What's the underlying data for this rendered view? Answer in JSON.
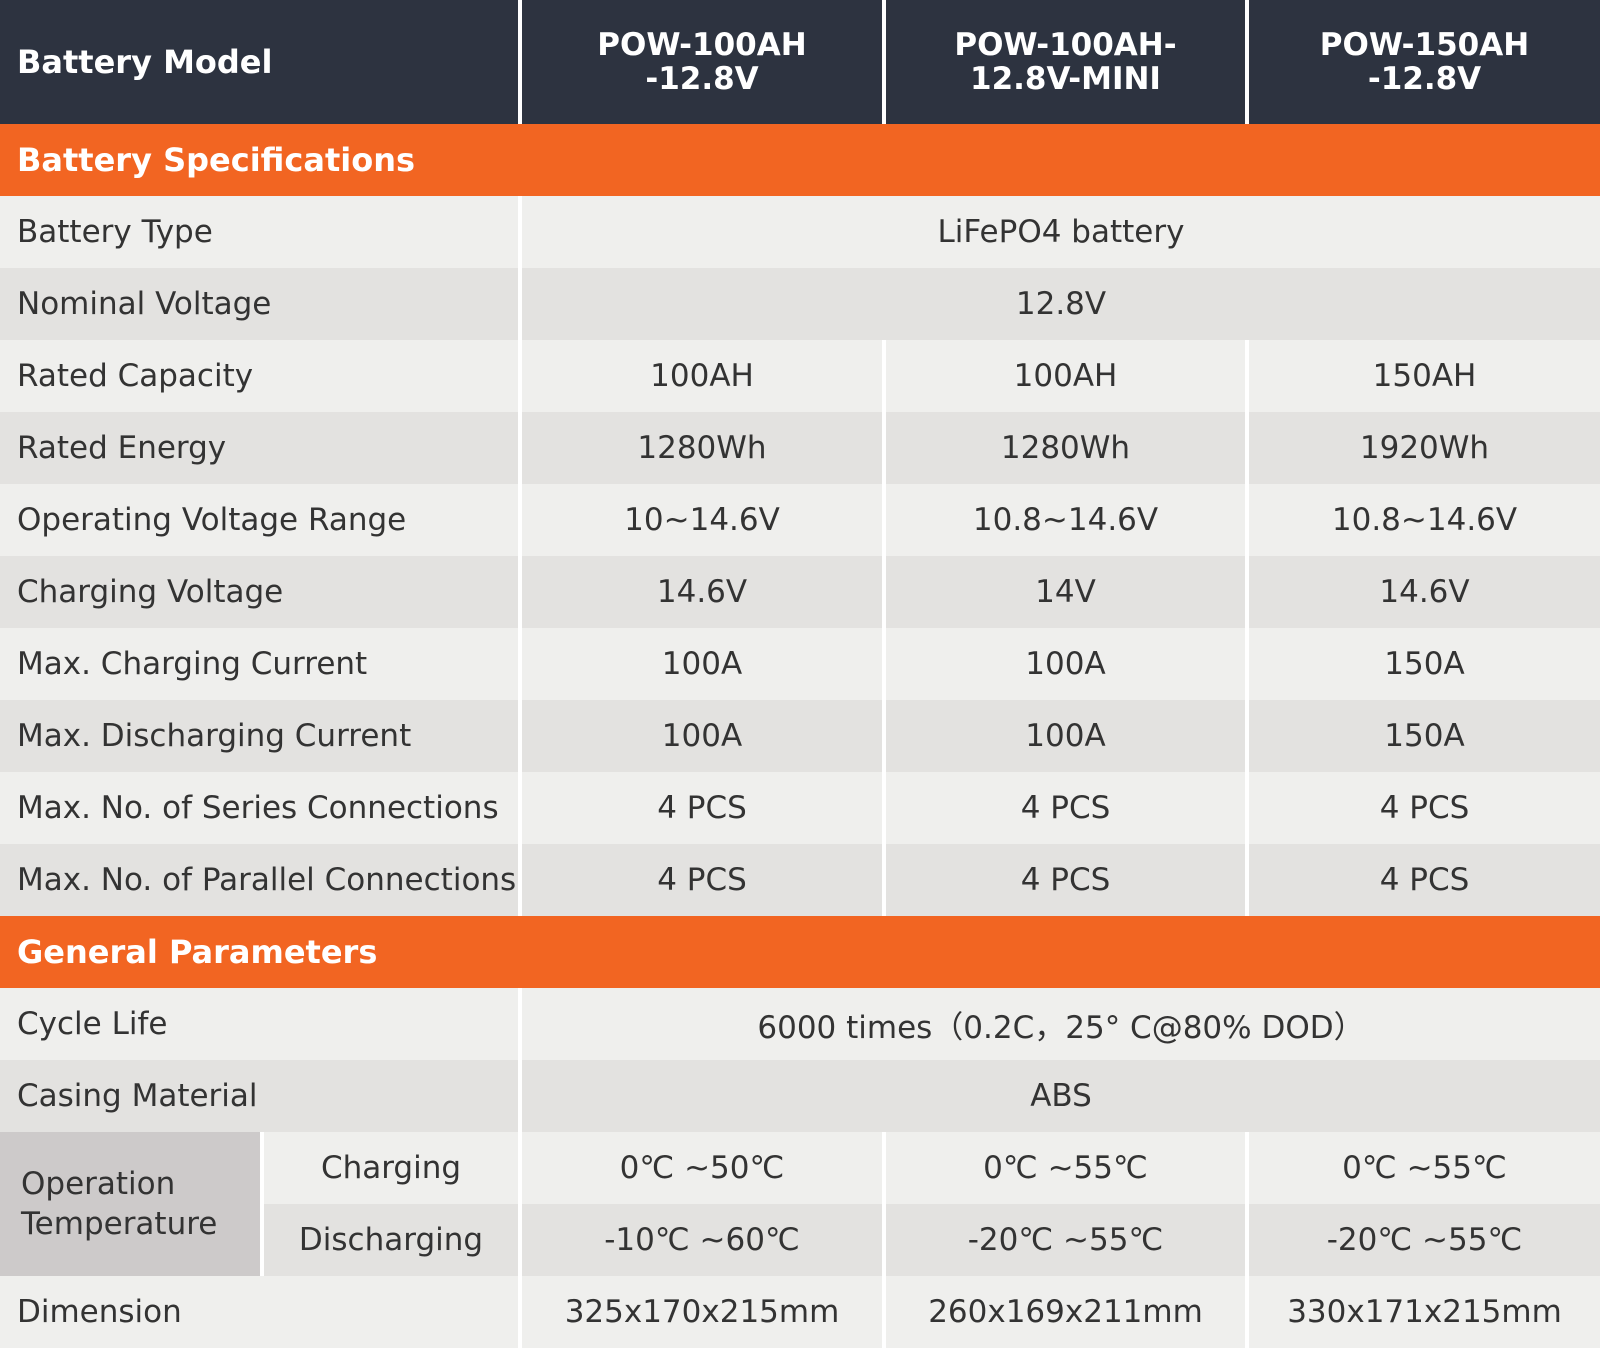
{
  "header": {
    "label": "Battery Model",
    "models": [
      [
        "POW-100AH",
        "-12.8V"
      ],
      [
        "POW-100AH-",
        "12.8V-MINI"
      ],
      [
        "POW-150AH",
        "-12.8V"
      ]
    ]
  },
  "sections": [
    {
      "title": "Battery Specifications",
      "rows": [
        {
          "label": "Battery Type",
          "values": [
            "LiFePO4 battery"
          ]
        },
        {
          "label": "Nominal Voltage",
          "values": [
            "12.8V"
          ]
        },
        {
          "label": "Rated Capacity",
          "values": [
            "100AH",
            "100AH",
            "150AH"
          ]
        },
        {
          "label": "Rated Energy",
          "values": [
            "1280Wh",
            "1280Wh",
            "1920Wh"
          ]
        },
        {
          "label": "Operating Voltage Range",
          "values": [
            "10~14.6V",
            "10.8~14.6V",
            "10.8~14.6V"
          ]
        },
        {
          "label": "Charging Voltage",
          "values": [
            "14.6V",
            "14V",
            "14.6V"
          ]
        },
        {
          "label": "Max. Charging Current",
          "values": [
            "100A",
            "100A",
            "150A"
          ]
        },
        {
          "label": "Max. Discharging Current",
          "values": [
            "100A",
            "100A",
            "150A"
          ]
        },
        {
          "label": "Max. No. of Series Connections",
          "values": [
            "4 PCS",
            "4 PCS",
            "4 PCS"
          ]
        },
        {
          "label": "Max. No. of Parallel Connections",
          "values": [
            "4 PCS",
            "4 PCS",
            "4 PCS"
          ]
        }
      ]
    },
    {
      "title": "General Parameters",
      "rows": [
        {
          "label": "Cycle Life",
          "values": [
            "6000 times（0.2C，25° C@80% DOD）"
          ]
        },
        {
          "label": "Casing Material",
          "values": [
            "ABS"
          ]
        },
        {
          "label": "Operation Temperature",
          "sub": [
            {
              "label": "Charging",
              "values": [
                "0℃ ~50℃",
                "0℃ ~55℃",
                "0℃ ~55℃"
              ]
            },
            {
              "label": "Discharging",
              "values": [
                "-10℃ ~60℃",
                "-20℃ ~55℃",
                "-20℃ ~55℃"
              ]
            }
          ]
        },
        {
          "label": "Dimension",
          "values": [
            "325x170x215mm",
            "260x169x211mm",
            "330x171x215mm"
          ]
        }
      ]
    }
  ]
}
